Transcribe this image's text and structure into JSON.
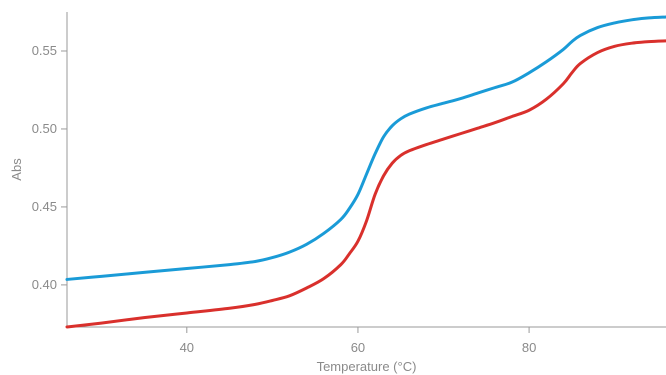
{
  "chart_data": {
    "type": "line",
    "xlabel": "Temperature (°C)",
    "ylabel": "Abs",
    "xlim": [
      26,
      96
    ],
    "ylim": [
      0.373,
      0.575
    ],
    "xticks": [
      40,
      60,
      80
    ],
    "yticks": [
      0.4,
      0.45,
      0.5,
      0.55
    ],
    "xtick_labels": [
      "40",
      "60",
      "80"
    ],
    "ytick_labels": [
      "0.40",
      "0.45",
      "0.50",
      "0.55"
    ],
    "grid": false,
    "series": [
      {
        "color": "#1a9bd7",
        "points": [
          [
            26,
            0.4035
          ],
          [
            30,
            0.4055
          ],
          [
            35,
            0.408
          ],
          [
            40,
            0.4105
          ],
          [
            45,
            0.413
          ],
          [
            48,
            0.415
          ],
          [
            50,
            0.4175
          ],
          [
            52,
            0.421
          ],
          [
            54,
            0.426
          ],
          [
            56,
            0.433
          ],
          [
            58,
            0.442
          ],
          [
            59,
            0.449
          ],
          [
            60,
            0.458
          ],
          [
            61,
            0.471
          ],
          [
            62,
            0.484
          ],
          [
            63,
            0.495
          ],
          [
            64,
            0.502
          ],
          [
            65,
            0.5065
          ],
          [
            66,
            0.5095
          ],
          [
            68,
            0.5135
          ],
          [
            70,
            0.5165
          ],
          [
            72,
            0.5195
          ],
          [
            74,
            0.523
          ],
          [
            76,
            0.5265
          ],
          [
            78,
            0.53
          ],
          [
            80,
            0.536
          ],
          [
            82,
            0.543
          ],
          [
            84,
            0.551
          ],
          [
            85,
            0.556
          ],
          [
            86,
            0.56
          ],
          [
            88,
            0.565
          ],
          [
            90,
            0.568
          ],
          [
            92,
            0.57
          ],
          [
            94,
            0.5712
          ],
          [
            96,
            0.5718
          ]
        ]
      },
      {
        "color": "#d9302c",
        "points": [
          [
            26,
            0.373
          ],
          [
            30,
            0.3755
          ],
          [
            35,
            0.379
          ],
          [
            40,
            0.382
          ],
          [
            45,
            0.385
          ],
          [
            48,
            0.3875
          ],
          [
            50,
            0.39
          ],
          [
            52,
            0.393
          ],
          [
            54,
            0.398
          ],
          [
            56,
            0.404
          ],
          [
            58,
            0.413
          ],
          [
            59,
            0.42
          ],
          [
            60,
            0.428
          ],
          [
            61,
            0.441
          ],
          [
            62,
            0.458
          ],
          [
            63,
            0.47
          ],
          [
            64,
            0.478
          ],
          [
            65,
            0.483
          ],
          [
            66,
            0.486
          ],
          [
            68,
            0.49
          ],
          [
            70,
            0.4935
          ],
          [
            72,
            0.497
          ],
          [
            74,
            0.5005
          ],
          [
            76,
            0.504
          ],
          [
            78,
            0.508
          ],
          [
            80,
            0.512
          ],
          [
            82,
            0.519
          ],
          [
            84,
            0.529
          ],
          [
            85,
            0.536
          ],
          [
            86,
            0.542
          ],
          [
            88,
            0.549
          ],
          [
            90,
            0.553
          ],
          [
            92,
            0.555
          ],
          [
            94,
            0.556
          ],
          [
            96,
            0.5565
          ]
        ]
      }
    ]
  }
}
